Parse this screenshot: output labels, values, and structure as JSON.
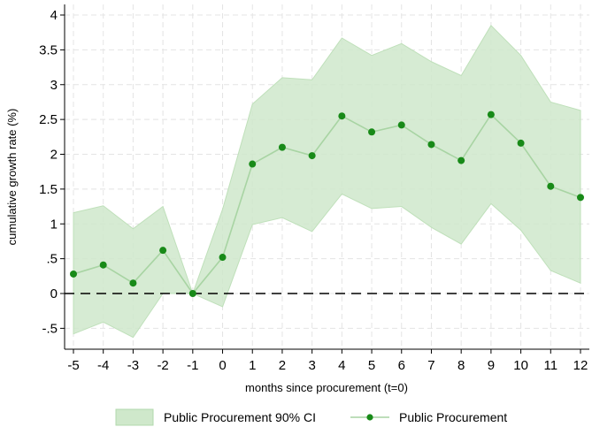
{
  "chart_data": {
    "type": "line",
    "xlabel": "months since procurement (t=0)",
    "ylabel": "cumulative growth rate (%)",
    "x": [
      -5,
      -4,
      -3,
      -2,
      -1,
      0,
      1,
      2,
      3,
      4,
      5,
      6,
      7,
      8,
      9,
      10,
      11,
      12
    ],
    "xlim": [
      -5,
      12
    ],
    "ylim": [
      -0.5,
      4
    ],
    "yticks": [
      -0.5,
      0,
      0.5,
      1,
      1.5,
      2,
      2.5,
      3,
      3.5,
      4
    ],
    "ytick_labels": [
      "-.5",
      "0",
      ".5",
      "1",
      "1.5",
      "2",
      "2.5",
      "3",
      "3.5",
      "4"
    ],
    "grid": true,
    "reference_line": {
      "y": 0,
      "style": "dashed"
    },
    "legend_position": "bottom",
    "series": [
      {
        "name": "Public Procurement 90% CI",
        "kind": "band",
        "color": "#cfe8cb",
        "lower": [
          -0.58,
          -0.41,
          -0.63,
          0.0,
          0.0,
          -0.19,
          0.99,
          1.09,
          0.89,
          1.43,
          1.22,
          1.25,
          0.95,
          0.71,
          1.29,
          0.91,
          0.33,
          0.15
        ],
        "upper": [
          1.16,
          1.26,
          0.93,
          1.25,
          0.0,
          1.21,
          2.72,
          3.1,
          3.07,
          3.67,
          3.42,
          3.59,
          3.33,
          3.13,
          3.85,
          3.42,
          2.75,
          2.63
        ]
      },
      {
        "name": "Public Procurement",
        "kind": "line",
        "color": "#188a18",
        "values": [
          0.28,
          0.41,
          0.15,
          0.62,
          0.0,
          0.52,
          1.86,
          2.1,
          1.98,
          2.55,
          2.32,
          2.42,
          2.14,
          1.91,
          2.57,
          2.16,
          1.54,
          1.38
        ]
      }
    ]
  }
}
